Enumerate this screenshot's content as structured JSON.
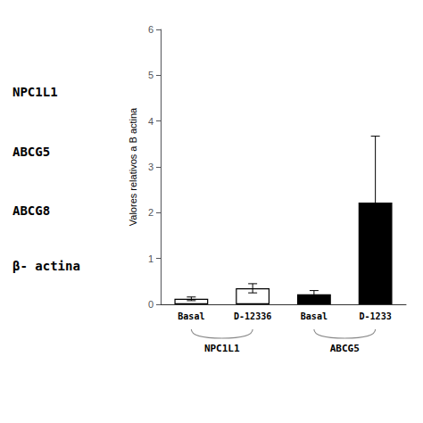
{
  "chart_data": {
    "type": "bar",
    "categories": [
      "Basal",
      "D-12336",
      "Basal",
      "D-1233"
    ],
    "values": [
      0.12,
      0.35,
      0.22,
      2.22
    ],
    "errors": [
      0.04,
      0.1,
      0.08,
      1.45
    ],
    "colors": [
      "white",
      "white",
      "black",
      "black"
    ],
    "ylabel": "Valores relativos a B actina",
    "ylim": [
      0,
      6
    ],
    "yticks": [
      0,
      1,
      2,
      3,
      4,
      5,
      6
    ],
    "annotations": [
      "NPC1L1",
      "ABCG5",
      "ABCG8",
      "β- actina"
    ],
    "group_labels": [
      "NPC1L1",
      "ABCG5"
    ],
    "grid": false
  }
}
